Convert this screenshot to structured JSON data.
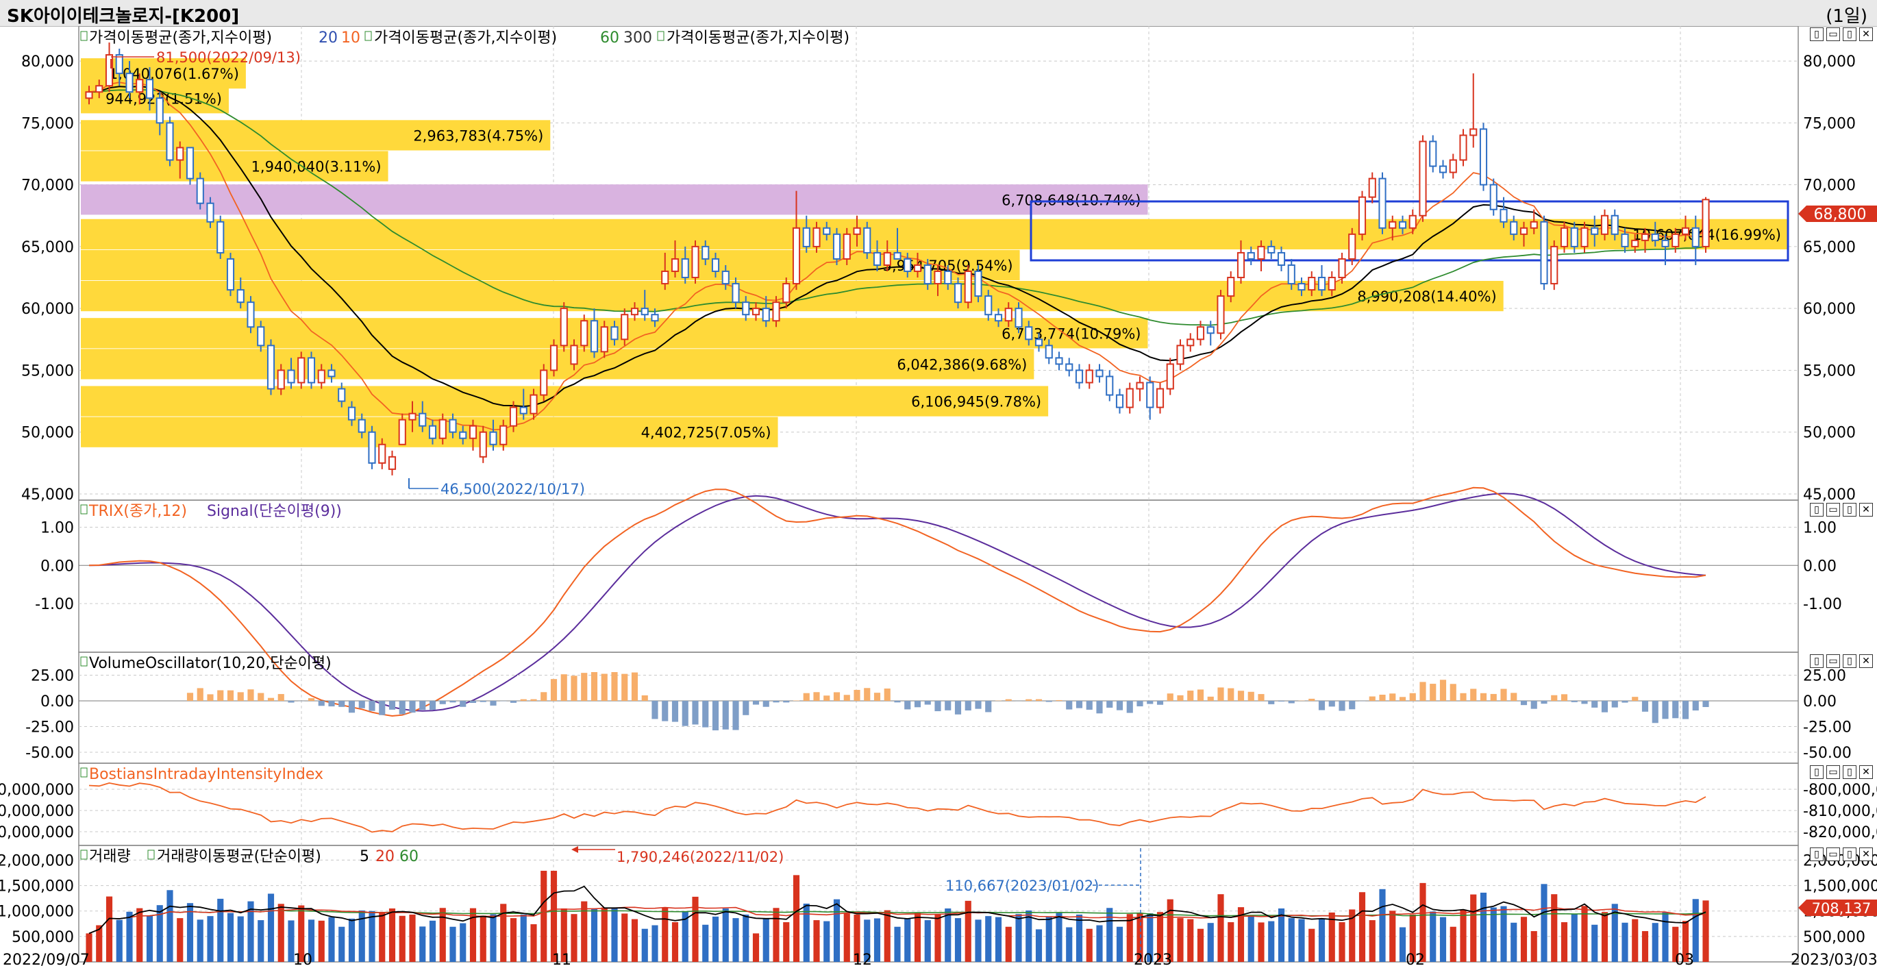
{
  "window": {
    "title": "SK아이이테크놀로지-[K200]",
    "period": "(1일)"
  },
  "colors": {
    "up": "#d8331e",
    "down": "#2f6fc4",
    "ma20": "#000000",
    "ma10": "#f26322",
    "ma60": "#2e8b2e",
    "vp_band": "#ffd93b",
    "vp_band_hot": "#d9b3e0",
    "box": "#1f3fd6",
    "price_tag": "#d8331e",
    "trix": "#f26322",
    "signal": "#5b2d9c",
    "vo_pos": "#f7ae6a",
    "vo_neg": "#7f9ec7",
    "bii": "#f26322",
    "vol_ma5": "#000000",
    "vol_ma20": "#d8331e",
    "vol_ma60": "#2e8b2e"
  },
  "price_pane": {
    "legend": {
      "ma1": "가격이동평균(종가,지수이평)",
      "ma1_p1": "20",
      "ma1_p2": "10",
      "ma2": "가격이동평균(종가,지수이평)",
      "ma2_p1": "60",
      "ma2_p2": "300",
      "ma3": "가격이동평균(종가,지수이평)"
    },
    "y_ticks": [
      "80,000",
      "75,000",
      "70,000",
      "65,000",
      "60,000",
      "55,000",
      "50,000",
      "45,000"
    ],
    "high_label": "81,500(2022/09/13)",
    "low_label": "46,500(2022/10/17)",
    "current_price": "68,800",
    "volume_profile": [
      "1,040,076(1.67%)",
      "944,923(1.51%)",
      "2,963,783(4.75%)",
      "1,940,040(3.11%)",
      "6,708,648(10.74%)",
      "10,607,044(16.99%)",
      "5,954,705(9.54%)",
      "8,990,208(14.40%)",
      "6,733,774(10.79%)",
      "6,042,386(9.68%)",
      "6,106,945(9.78%)",
      "4,402,725(7.05%)"
    ]
  },
  "trix_pane": {
    "legend_trix": "TRIX(종가,12)",
    "legend_signal": "Signal(단순이평(9))",
    "y_ticks": [
      "1.00",
      "0.00",
      "-1.00"
    ]
  },
  "vo_pane": {
    "legend": "VolumeOscillator(10,20,단순이평)",
    "y_ticks": [
      "25.00",
      "0.00",
      "-25.00",
      "-50.00"
    ]
  },
  "bii_pane": {
    "legend": "BostiansIntradayIntensityIndex",
    "y_ticks_left": [
      "00,000,000",
      "00,000,000",
      "00,000,000"
    ],
    "y_ticks_right": [
      "-800,000,0",
      "-810,000,0",
      "-820,000,0"
    ]
  },
  "volume_pane": {
    "legend_vol": "거래량",
    "legend_ma": "거래량이동평균(단순이평)",
    "ma_p1": "5",
    "ma_p2": "20",
    "ma_p3": "60",
    "y_ticks": [
      "2,000,000",
      "1,500,000",
      "1,000,000",
      "500,000"
    ],
    "high_label": "1,790,246(2022/11/02)",
    "cursor_label": "110,667(2023/01/02)",
    "current_volume": "708,137"
  },
  "x_axis": {
    "labels": [
      "2022/09/07",
      "10",
      "11",
      "12",
      "2023",
      "02",
      "03",
      "2023/03/03"
    ]
  },
  "chart_data": {
    "type": "candlestick",
    "title": "SK아이이테크놀로지-[K200]",
    "ylim": [
      45000,
      82000
    ],
    "candles": [
      [
        77000,
        78000,
        76500,
        77500
      ],
      [
        77500,
        78500,
        77000,
        78000
      ],
      [
        78000,
        81500,
        77500,
        80500
      ],
      [
        80500,
        81000,
        78000,
        79000
      ],
      [
        79000,
        80000,
        77000,
        77500
      ],
      [
        77500,
        79000,
        76500,
        78500
      ],
      [
        78500,
        79500,
        76000,
        77000
      ],
      [
        77000,
        77500,
        74000,
        75000
      ],
      [
        75000,
        75500,
        71500,
        72000
      ],
      [
        72000,
        73500,
        70500,
        73000
      ],
      [
        73000,
        73000,
        70000,
        70500
      ],
      [
        70500,
        71000,
        68000,
        68500
      ],
      [
        68500,
        69000,
        66500,
        67000
      ],
      [
        67000,
        67500,
        64000,
        64500
      ],
      [
        64000,
        64500,
        61000,
        61500
      ],
      [
        61500,
        62500,
        60000,
        60500
      ],
      [
        60500,
        61000,
        58000,
        58500
      ],
      [
        58500,
        59000,
        56500,
        57000
      ],
      [
        57000,
        57500,
        53000,
        53500
      ],
      [
        53500,
        55500,
        53000,
        55000
      ],
      [
        55000,
        56000,
        53500,
        54000
      ],
      [
        54000,
        56500,
        53500,
        56000
      ],
      [
        56000,
        56500,
        53500,
        54000
      ],
      [
        54000,
        55500,
        53500,
        55000
      ],
      [
        55000,
        55500,
        54000,
        54500
      ],
      [
        53500,
        54000,
        52000,
        52500
      ],
      [
        52000,
        52500,
        50500,
        51000
      ],
      [
        51000,
        51500,
        49500,
        50000
      ],
      [
        50000,
        50500,
        47000,
        47500
      ],
      [
        47500,
        49500,
        47000,
        49000
      ],
      [
        47000,
        48500,
        46500,
        48000
      ],
      [
        49000,
        51500,
        49000,
        51000
      ],
      [
        51000,
        52500,
        50000,
        51500
      ],
      [
        51500,
        52500,
        50000,
        50500
      ],
      [
        50500,
        51000,
        49000,
        49500
      ],
      [
        49500,
        51500,
        49000,
        51000
      ],
      [
        51000,
        51500,
        49500,
        50000
      ],
      [
        50000,
        50500,
        49000,
        49500
      ],
      [
        49500,
        51000,
        48500,
        50500
      ],
      [
        48000,
        50500,
        47500,
        50000
      ],
      [
        50000,
        51000,
        48500,
        49000
      ],
      [
        49000,
        51000,
        48500,
        50500
      ],
      [
        50500,
        52500,
        50000,
        52000
      ],
      [
        52000,
        53500,
        51000,
        51500
      ],
      [
        51500,
        53500,
        51000,
        53000
      ],
      [
        53000,
        55500,
        52500,
        55000
      ],
      [
        55000,
        57500,
        54500,
        57000
      ],
      [
        57000,
        60500,
        56500,
        60000
      ],
      [
        55500,
        57500,
        55000,
        57000
      ],
      [
        57000,
        59500,
        56500,
        59000
      ],
      [
        59000,
        60000,
        56000,
        56500
      ],
      [
        56500,
        59000,
        56000,
        58500
      ],
      [
        58500,
        59000,
        57000,
        57500
      ],
      [
        57500,
        60000,
        57000,
        59500
      ],
      [
        59500,
        60500,
        59000,
        60000
      ],
      [
        60000,
        61500,
        59000,
        59500
      ],
      [
        59500,
        60000,
        58500,
        59000
      ],
      [
        62000,
        64500,
        61500,
        63000
      ],
      [
        63000,
        65500,
        62500,
        64000
      ],
      [
        64000,
        65000,
        62000,
        62500
      ],
      [
        62500,
        65500,
        62000,
        65000
      ],
      [
        65000,
        65500,
        63500,
        64000
      ],
      [
        64000,
        64500,
        62500,
        63000
      ],
      [
        63000,
        63500,
        61500,
        62000
      ],
      [
        62000,
        62500,
        60000,
        60500
      ],
      [
        60500,
        61000,
        59000,
        59500
      ],
      [
        59500,
        60500,
        59000,
        60000
      ],
      [
        60000,
        61000,
        58500,
        59000
      ],
      [
        59000,
        61000,
        58500,
        60500
      ],
      [
        60500,
        62500,
        60000,
        62000
      ],
      [
        62000,
        69500,
        61500,
        66500
      ],
      [
        66500,
        67500,
        64500,
        65000
      ],
      [
        65000,
        67000,
        64500,
        66500
      ],
      [
        66500,
        67000,
        65500,
        66000
      ],
      [
        66000,
        66500,
        63500,
        64000
      ],
      [
        64000,
        66500,
        63500,
        66000
      ],
      [
        66000,
        67500,
        65000,
        66500
      ],
      [
        66500,
        67000,
        64000,
        64500
      ],
      [
        64500,
        65500,
        63000,
        63500
      ],
      [
        63500,
        65500,
        63000,
        64500
      ],
      [
        64500,
        66500,
        64000,
        64000
      ],
      [
        64000,
        64500,
        62500,
        63000
      ],
      [
        63000,
        64500,
        62500,
        63500
      ],
      [
        63500,
        64000,
        61500,
        62000
      ],
      [
        62000,
        63500,
        61000,
        63000
      ],
      [
        63000,
        63500,
        61500,
        62000
      ],
      [
        62000,
        62500,
        60000,
        60500
      ],
      [
        60500,
        63500,
        60000,
        63000
      ],
      [
        63000,
        63500,
        60500,
        61000
      ],
      [
        61000,
        61500,
        59000,
        59500
      ],
      [
        59500,
        60000,
        58500,
        59000
      ],
      [
        59000,
        60500,
        58500,
        60000
      ],
      [
        60000,
        60500,
        58000,
        58500
      ],
      [
        58500,
        59000,
        57000,
        57500
      ],
      [
        57500,
        58000,
        56500,
        57000
      ],
      [
        57000,
        57500,
        55500,
        56000
      ],
      [
        56000,
        56500,
        55000,
        55500
      ],
      [
        55500,
        56000,
        54500,
        55000
      ],
      [
        55000,
        55500,
        53500,
        54000
      ],
      [
        54000,
        55500,
        53500,
        55000
      ],
      [
        55000,
        55500,
        54000,
        54500
      ],
      [
        54500,
        55000,
        52500,
        53000
      ],
      [
        53000,
        53500,
        51500,
        52000
      ],
      [
        52000,
        54000,
        51500,
        53500
      ],
      [
        53500,
        54500,
        52500,
        54000
      ],
      [
        54000,
        54500,
        51000,
        52000
      ],
      [
        52000,
        54000,
        51500,
        53500
      ],
      [
        53500,
        56000,
        53000,
        55500
      ],
      [
        55500,
        57500,
        55000,
        57000
      ],
      [
        57000,
        58000,
        56500,
        57500
      ],
      [
        57500,
        59000,
        57000,
        58500
      ],
      [
        58500,
        59000,
        57000,
        58000
      ],
      [
        58000,
        61500,
        57500,
        61000
      ],
      [
        61000,
        63000,
        60500,
        62500
      ],
      [
        62500,
        65500,
        62000,
        64500
      ],
      [
        64500,
        65000,
        63500,
        64000
      ],
      [
        64000,
        65500,
        63000,
        65000
      ],
      [
        65000,
        65500,
        64000,
        64500
      ],
      [
        64500,
        65000,
        63000,
        63500
      ],
      [
        63500,
        64000,
        61500,
        62000
      ],
      [
        62000,
        62500,
        61000,
        61500
      ],
      [
        61500,
        63000,
        61000,
        62500
      ],
      [
        62500,
        63500,
        61000,
        61500
      ],
      [
        61500,
        63000,
        61000,
        62500
      ],
      [
        62500,
        64500,
        62000,
        64000
      ],
      [
        64000,
        66500,
        63500,
        66000
      ],
      [
        66000,
        69500,
        65500,
        69000
      ],
      [
        69000,
        71000,
        68500,
        70500
      ],
      [
        70500,
        71000,
        66000,
        66500
      ],
      [
        66500,
        67500,
        65500,
        67000
      ],
      [
        67000,
        67500,
        66000,
        66500
      ],
      [
        66500,
        68000,
        66000,
        67500
      ],
      [
        67500,
        74000,
        67000,
        73500
      ],
      [
        73500,
        74000,
        71000,
        71500
      ],
      [
        71500,
        72000,
        70500,
        71000
      ],
      [
        71000,
        72500,
        70500,
        72000
      ],
      [
        72000,
        74500,
        71500,
        74000
      ],
      [
        74000,
        79000,
        73000,
        74500
      ],
      [
        74500,
        75000,
        69500,
        70000
      ],
      [
        70000,
        70500,
        67500,
        68000
      ],
      [
        68000,
        69000,
        66500,
        67000
      ],
      [
        67000,
        67500,
        65500,
        66000
      ],
      [
        66000,
        67000,
        65000,
        66500
      ],
      [
        66500,
        68000,
        66000,
        67000
      ],
      [
        67000,
        67500,
        61500,
        62000
      ],
      [
        62000,
        65500,
        61500,
        65000
      ],
      [
        65000,
        67000,
        64500,
        66500
      ],
      [
        66500,
        67000,
        64500,
        65000
      ],
      [
        65000,
        67000,
        64500,
        66500
      ],
      [
        66500,
        67500,
        65000,
        66000
      ],
      [
        66000,
        68000,
        65500,
        67500
      ],
      [
        67500,
        68000,
        65500,
        66000
      ],
      [
        66000,
        66500,
        64500,
        65000
      ],
      [
        65000,
        66000,
        64500,
        65500
      ],
      [
        65500,
        66500,
        64500,
        66000
      ],
      [
        66000,
        67000,
        65000,
        65500
      ],
      [
        65500,
        66000,
        63500,
        65000
      ],
      [
        65000,
        66500,
        64500,
        66000
      ],
      [
        66000,
        67500,
        65500,
        66500
      ],
      [
        66500,
        67500,
        63500,
        65000
      ],
      [
        65000,
        69000,
        64500,
        68800
      ]
    ]
  }
}
